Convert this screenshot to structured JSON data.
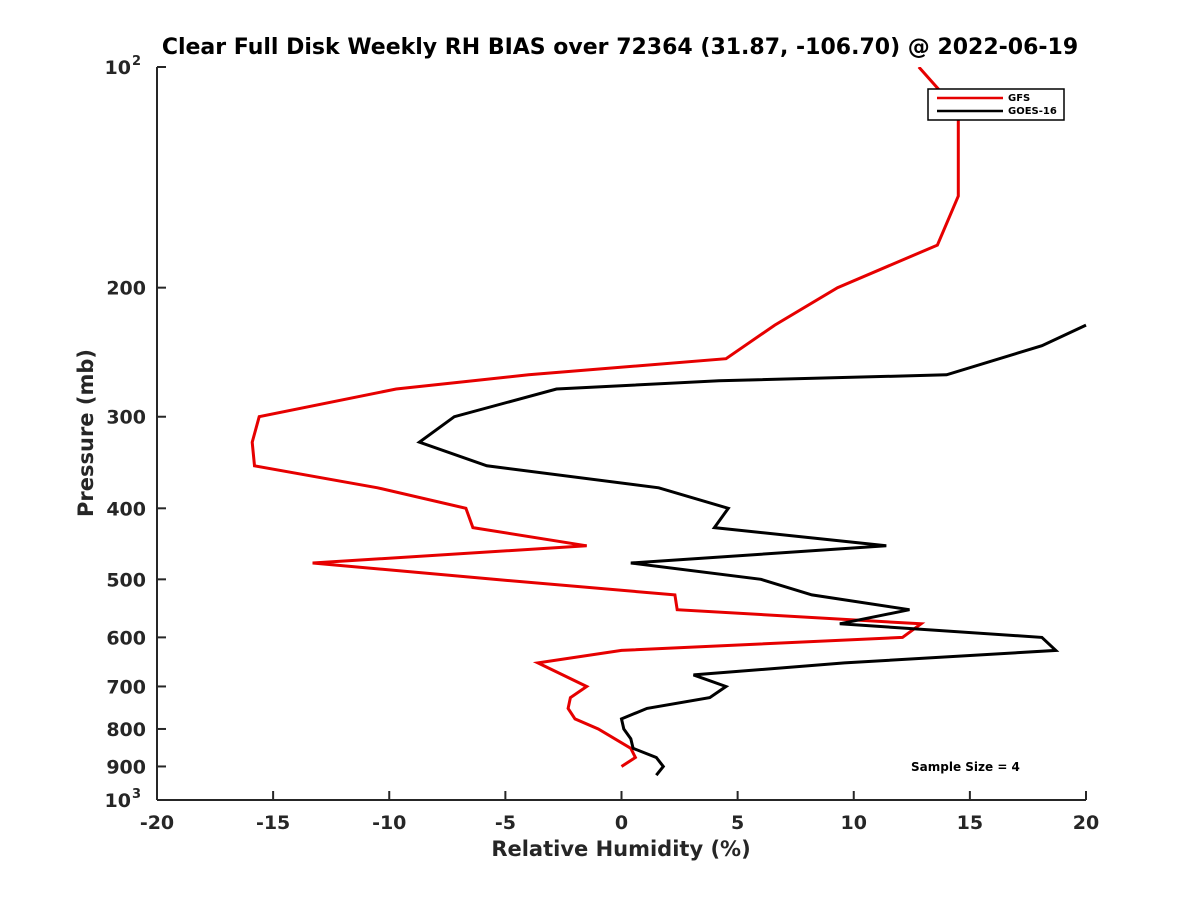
{
  "chart_data": {
    "type": "line",
    "title": "Clear Full Disk Weekly RH BIAS over 72364 (31.87, -106.70) @ 2022-06-19",
    "xlabel": "Relative Humidity (%)",
    "ylabel": "Pressure (mb)",
    "xlim": [
      -20,
      20
    ],
    "ylim": [
      100,
      1000
    ],
    "y_scale": "log",
    "y_reversed": true,
    "grid": false,
    "x_ticks": [
      -20,
      -15,
      -10,
      -5,
      0,
      5,
      10,
      15,
      20
    ],
    "x_tick_labels": [
      "-20",
      "-15",
      "-10",
      "-5",
      "0",
      "5",
      "10",
      "15",
      "20"
    ],
    "y_ticks": [
      {
        "value": 100,
        "base": "10",
        "exp": "2"
      },
      {
        "value": 200,
        "label": "200"
      },
      {
        "value": 300,
        "label": "300"
      },
      {
        "value": 400,
        "label": "400"
      },
      {
        "value": 500,
        "label": "500"
      },
      {
        "value": 600,
        "label": "600"
      },
      {
        "value": 700,
        "label": "700"
      },
      {
        "value": 800,
        "label": "800"
      },
      {
        "value": 900,
        "label": "900"
      },
      {
        "value": 1000,
        "base": "10",
        "exp": "3"
      }
    ],
    "legend_position": "top-right",
    "annotation": "Sample Size = 4",
    "series": [
      {
        "name": "GFS",
        "color": "#e60000",
        "points": [
          {
            "x": 12.8,
            "y": 100
          },
          {
            "x": 14.5,
            "y": 115
          },
          {
            "x": 14.5,
            "y": 150
          },
          {
            "x": 13.6,
            "y": 175
          },
          {
            "x": 9.3,
            "y": 200
          },
          {
            "x": 6.6,
            "y": 225
          },
          {
            "x": 4.5,
            "y": 250
          },
          {
            "x": -4.0,
            "y": 263
          },
          {
            "x": -9.7,
            "y": 275
          },
          {
            "x": -15.6,
            "y": 300
          },
          {
            "x": -15.9,
            "y": 325
          },
          {
            "x": -15.8,
            "y": 350
          },
          {
            "x": -10.5,
            "y": 375
          },
          {
            "x": -6.7,
            "y": 400
          },
          {
            "x": -6.4,
            "y": 425
          },
          {
            "x": -1.5,
            "y": 450
          },
          {
            "x": -13.3,
            "y": 475
          },
          {
            "x": -5.5,
            "y": 500
          },
          {
            "x": 2.3,
            "y": 525
          },
          {
            "x": 2.4,
            "y": 550
          },
          {
            "x": 12.9,
            "y": 575
          },
          {
            "x": 12.1,
            "y": 600
          },
          {
            "x": 0,
            "y": 625
          },
          {
            "x": -3.6,
            "y": 650
          },
          {
            "x": -1.5,
            "y": 700
          },
          {
            "x": -2.2,
            "y": 725
          },
          {
            "x": -2.3,
            "y": 750
          },
          {
            "x": -2.0,
            "y": 775
          },
          {
            "x": -1.0,
            "y": 800
          },
          {
            "x": 0.4,
            "y": 850
          },
          {
            "x": 0.6,
            "y": 875
          },
          {
            "x": 0,
            "y": 900
          }
        ]
      },
      {
        "name": "GOES-16",
        "color": "#000000",
        "points": [
          {
            "x": 20,
            "y": 225
          },
          {
            "x": 18.1,
            "y": 240
          },
          {
            "x": 14.0,
            "y": 263
          },
          {
            "x": 4.2,
            "y": 268
          },
          {
            "x": -2.8,
            "y": 275
          },
          {
            "x": -7.2,
            "y": 300
          },
          {
            "x": -8.7,
            "y": 325
          },
          {
            "x": -5.8,
            "y": 350
          },
          {
            "x": 1.6,
            "y": 375
          },
          {
            "x": 4.6,
            "y": 400
          },
          {
            "x": 4.0,
            "y": 425
          },
          {
            "x": 11.4,
            "y": 450
          },
          {
            "x": 0.4,
            "y": 475
          },
          {
            "x": 6.0,
            "y": 500
          },
          {
            "x": 8.2,
            "y": 525
          },
          {
            "x": 12.4,
            "y": 550
          },
          {
            "x": 9.4,
            "y": 575
          },
          {
            "x": 18.1,
            "y": 600
          },
          {
            "x": 18.7,
            "y": 625
          },
          {
            "x": 9.6,
            "y": 650
          },
          {
            "x": 3.1,
            "y": 675
          },
          {
            "x": 4.5,
            "y": 700
          },
          {
            "x": 3.8,
            "y": 725
          },
          {
            "x": 1.1,
            "y": 750
          },
          {
            "x": 0,
            "y": 775
          },
          {
            "x": 0.1,
            "y": 800
          },
          {
            "x": 0.4,
            "y": 825
          },
          {
            "x": 0.5,
            "y": 850
          },
          {
            "x": 1.5,
            "y": 875
          },
          {
            "x": 1.8,
            "y": 900
          },
          {
            "x": 1.5,
            "y": 925
          }
        ]
      }
    ]
  }
}
